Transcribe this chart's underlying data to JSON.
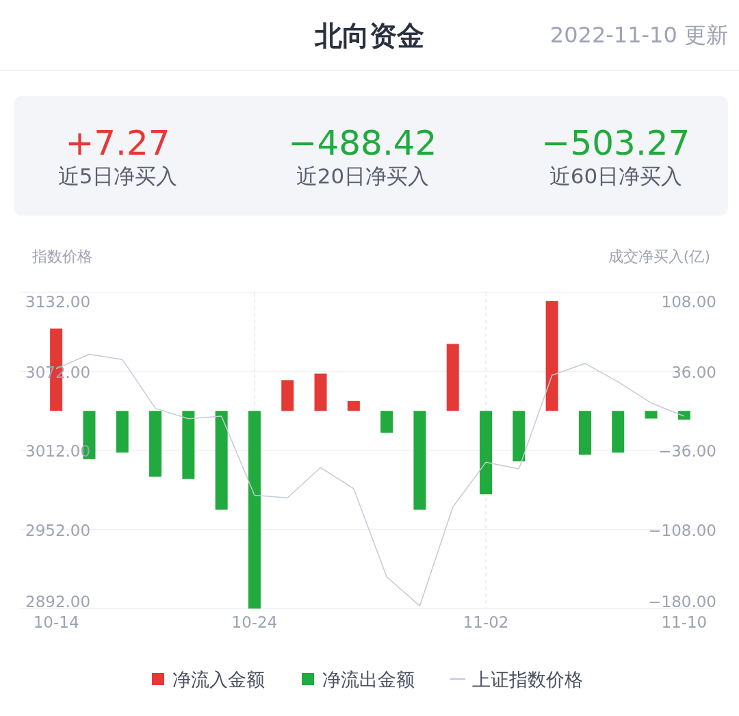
{
  "chart_data": {
    "type": "bar",
    "title": "北向资金",
    "annotations": [
      "2022-11-10 更新",
      "+7.27",
      "近5日净买入",
      "−488.42",
      "近20日净买入",
      "−503.27",
      "近60日净买入"
    ],
    "ylabel": "指数价格",
    "y2label": "成交净买入(亿)",
    "categories": [
      "10-14",
      null,
      null,
      null,
      null,
      null,
      "10-24",
      null,
      null,
      null,
      null,
      null,
      null,
      "11-02",
      null,
      null,
      null,
      null,
      null,
      "11-10"
    ],
    "series": [
      {
        "name": "净流入金额",
        "axis": "y2",
        "color": "#e53935",
        "values": [
          75,
          null,
          null,
          null,
          null,
          null,
          null,
          28,
          34,
          9,
          null,
          null,
          61,
          null,
          null,
          100,
          null,
          null,
          null,
          null
        ]
      },
      {
        "name": "净流出金额",
        "axis": "y2",
        "color": "#21aa3d",
        "values": [
          null,
          -44,
          -38,
          -60,
          -62,
          -90,
          -180,
          null,
          null,
          null,
          -20,
          -90,
          null,
          -76,
          -46,
          null,
          -40,
          -38,
          -7,
          -8
        ]
      },
      {
        "name": "上证指数价格",
        "type": "line",
        "color": "#c5cad8",
        "values": [
          3074,
          3085,
          3081,
          3044,
          3036,
          3038,
          2978,
          2976,
          2999,
          2983,
          2916,
          2894,
          2969,
          3003,
          2998,
          3069,
          3078,
          3064,
          3048,
          3038
        ]
      }
    ],
    "ylim": [
      2892,
      3132
    ],
    "yticks": [
      {
        "value": 3132,
        "label": "3132.00"
      },
      {
        "value": 3072,
        "label": "3072.00"
      },
      {
        "value": 3012,
        "label": "3012.00"
      },
      {
        "value": 2952,
        "label": "2952.00"
      },
      {
        "value": 2892,
        "label": "2892.00"
      }
    ],
    "y2lim": [
      -180,
      108
    ],
    "y2ticks": [
      {
        "value": 108,
        "label": "108.00"
      },
      {
        "value": 36,
        "label": "36.00"
      },
      {
        "value": -36,
        "label": "−36.00"
      },
      {
        "value": -108,
        "label": "−108.00"
      },
      {
        "value": -180,
        "label": "−180.00"
      }
    ],
    "grid": true,
    "legend": "bottom"
  }
}
